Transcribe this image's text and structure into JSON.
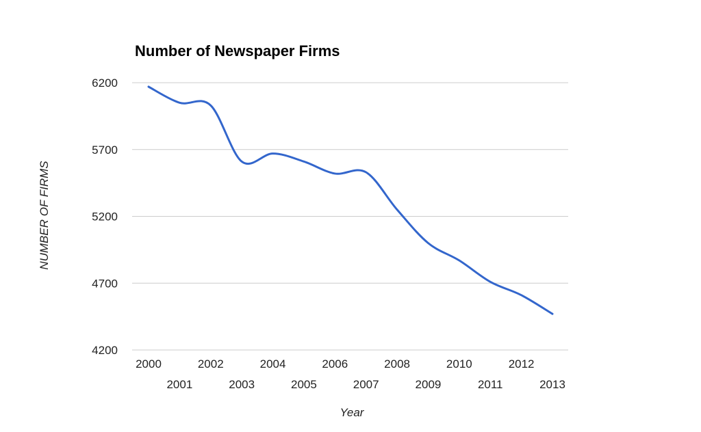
{
  "chart_data": {
    "type": "line",
    "title": "Number of Newspaper Firms",
    "xlabel": "Year",
    "ylabel": "NUMBER OF FIRMS",
    "x": [
      "2000",
      "2001",
      "2002",
      "2003",
      "2004",
      "2005",
      "2006",
      "2007",
      "2008",
      "2009",
      "2010",
      "2011",
      "2012",
      "2013"
    ],
    "series": [
      {
        "values": [
          6170,
          6050,
          6030,
          5610,
          5670,
          5610,
          5520,
          5530,
          5250,
          5000,
          4870,
          4710,
          4610,
          4470
        ],
        "color": "#3366cc"
      }
    ],
    "yticks": [
      "6200",
      "5700",
      "5200",
      "4700",
      "4200"
    ],
    "ylim": [
      4200,
      6200
    ],
    "grid": true,
    "legend": "none"
  }
}
